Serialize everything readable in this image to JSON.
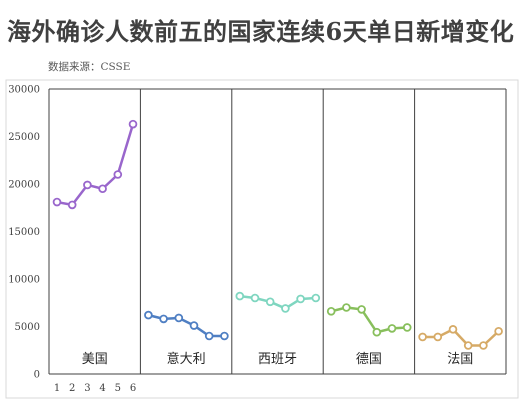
{
  "title": "海外确诊人数前五的国家连续6天单日新增变化",
  "source": "数据来源：CSSE",
  "chart_data": {
    "type": "line",
    "title": "海外确诊人数前五的国家连续6天单日新增变化",
    "xlabel": "",
    "ylabel": "",
    "x": [
      "1",
      "2",
      "3",
      "4",
      "5",
      "6"
    ],
    "yticks": [
      "30000",
      "25000",
      "20000",
      "15000",
      "10000",
      "5000",
      "0"
    ],
    "ylim": [
      0,
      30000
    ],
    "grid": false,
    "series": [
      {
        "name": "美国",
        "color": "#9966cc",
        "values": [
          18100,
          17800,
          19900,
          19500,
          21000,
          26300
        ]
      },
      {
        "name": "意大利",
        "color": "#4f7fc3",
        "values": [
          6200,
          5800,
          5900,
          5100,
          4000,
          4000
        ]
      },
      {
        "name": "西班牙",
        "color": "#7fd6c0",
        "values": [
          8200,
          8000,
          7600,
          6900,
          7900,
          8000
        ]
      },
      {
        "name": "德国",
        "color": "#88bf5c",
        "values": [
          6600,
          7000,
          6800,
          4400,
          4800,
          4900
        ]
      },
      {
        "name": "法国",
        "color": "#d6aa66",
        "values": [
          3900,
          3900,
          4700,
          3000,
          3000,
          4500
        ]
      }
    ]
  }
}
